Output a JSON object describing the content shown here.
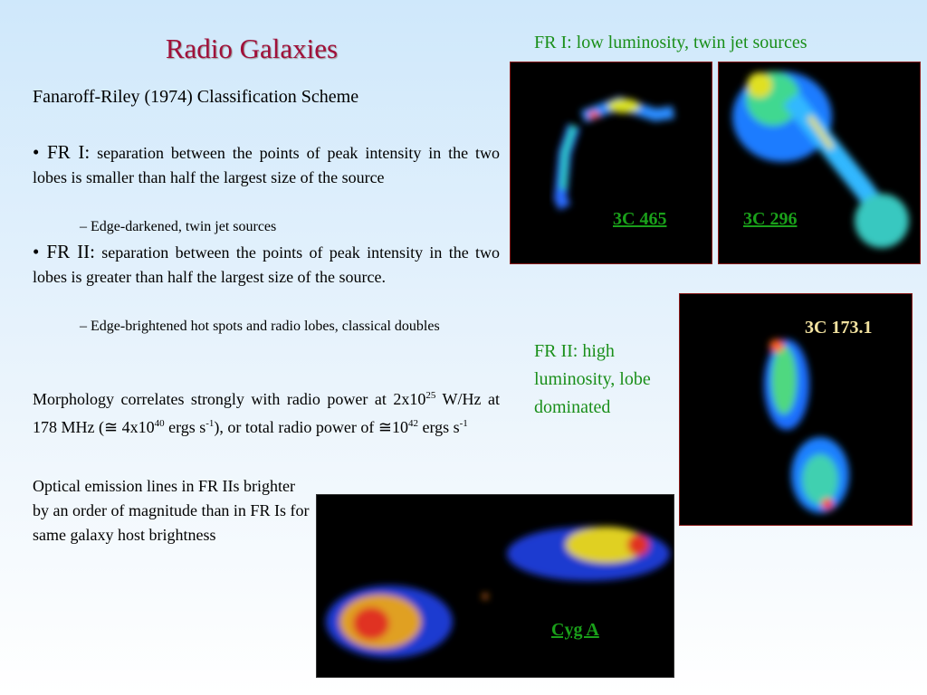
{
  "title": "Radio Galaxies",
  "subtitle": "Fanaroff-Riley (1974) Classification Scheme",
  "bullets": [
    {
      "label": "• FR I:",
      "text": "separation between the points of peak intensity in the two lobes is smaller than half the largest size of the source",
      "sub": "– Edge-darkened, twin jet sources"
    },
    {
      "label": "• FR II:",
      "text": "separation between the points of peak intensity in the two lobes is greater than half the largest size of the source.",
      "sub": "– Edge-brightened hot spots and radio lobes, classical doubles"
    }
  ],
  "morphology": [
    "Morphology correlates strongly with radio power at 2x10",
    "25",
    " W/Hz at 178 MHz (≅ 4x10",
    "40",
    " ergs s",
    "-1",
    "), or total radio power of ≅10",
    "42",
    " ergs s",
    "-1"
  ],
  "optical": "Optical emission lines in FR IIs brighter by an order of magnitude than in FR Is for same galaxy host brightness",
  "fr1_caption": "FR I: low luminosity, twin jet sources",
  "fr2_caption": "FR II: high luminosity, lobe dominated",
  "images": {
    "c465": "3C 465",
    "c296": "3C 296",
    "c173": "3C 173.1",
    "cyga": "Cyg A"
  }
}
